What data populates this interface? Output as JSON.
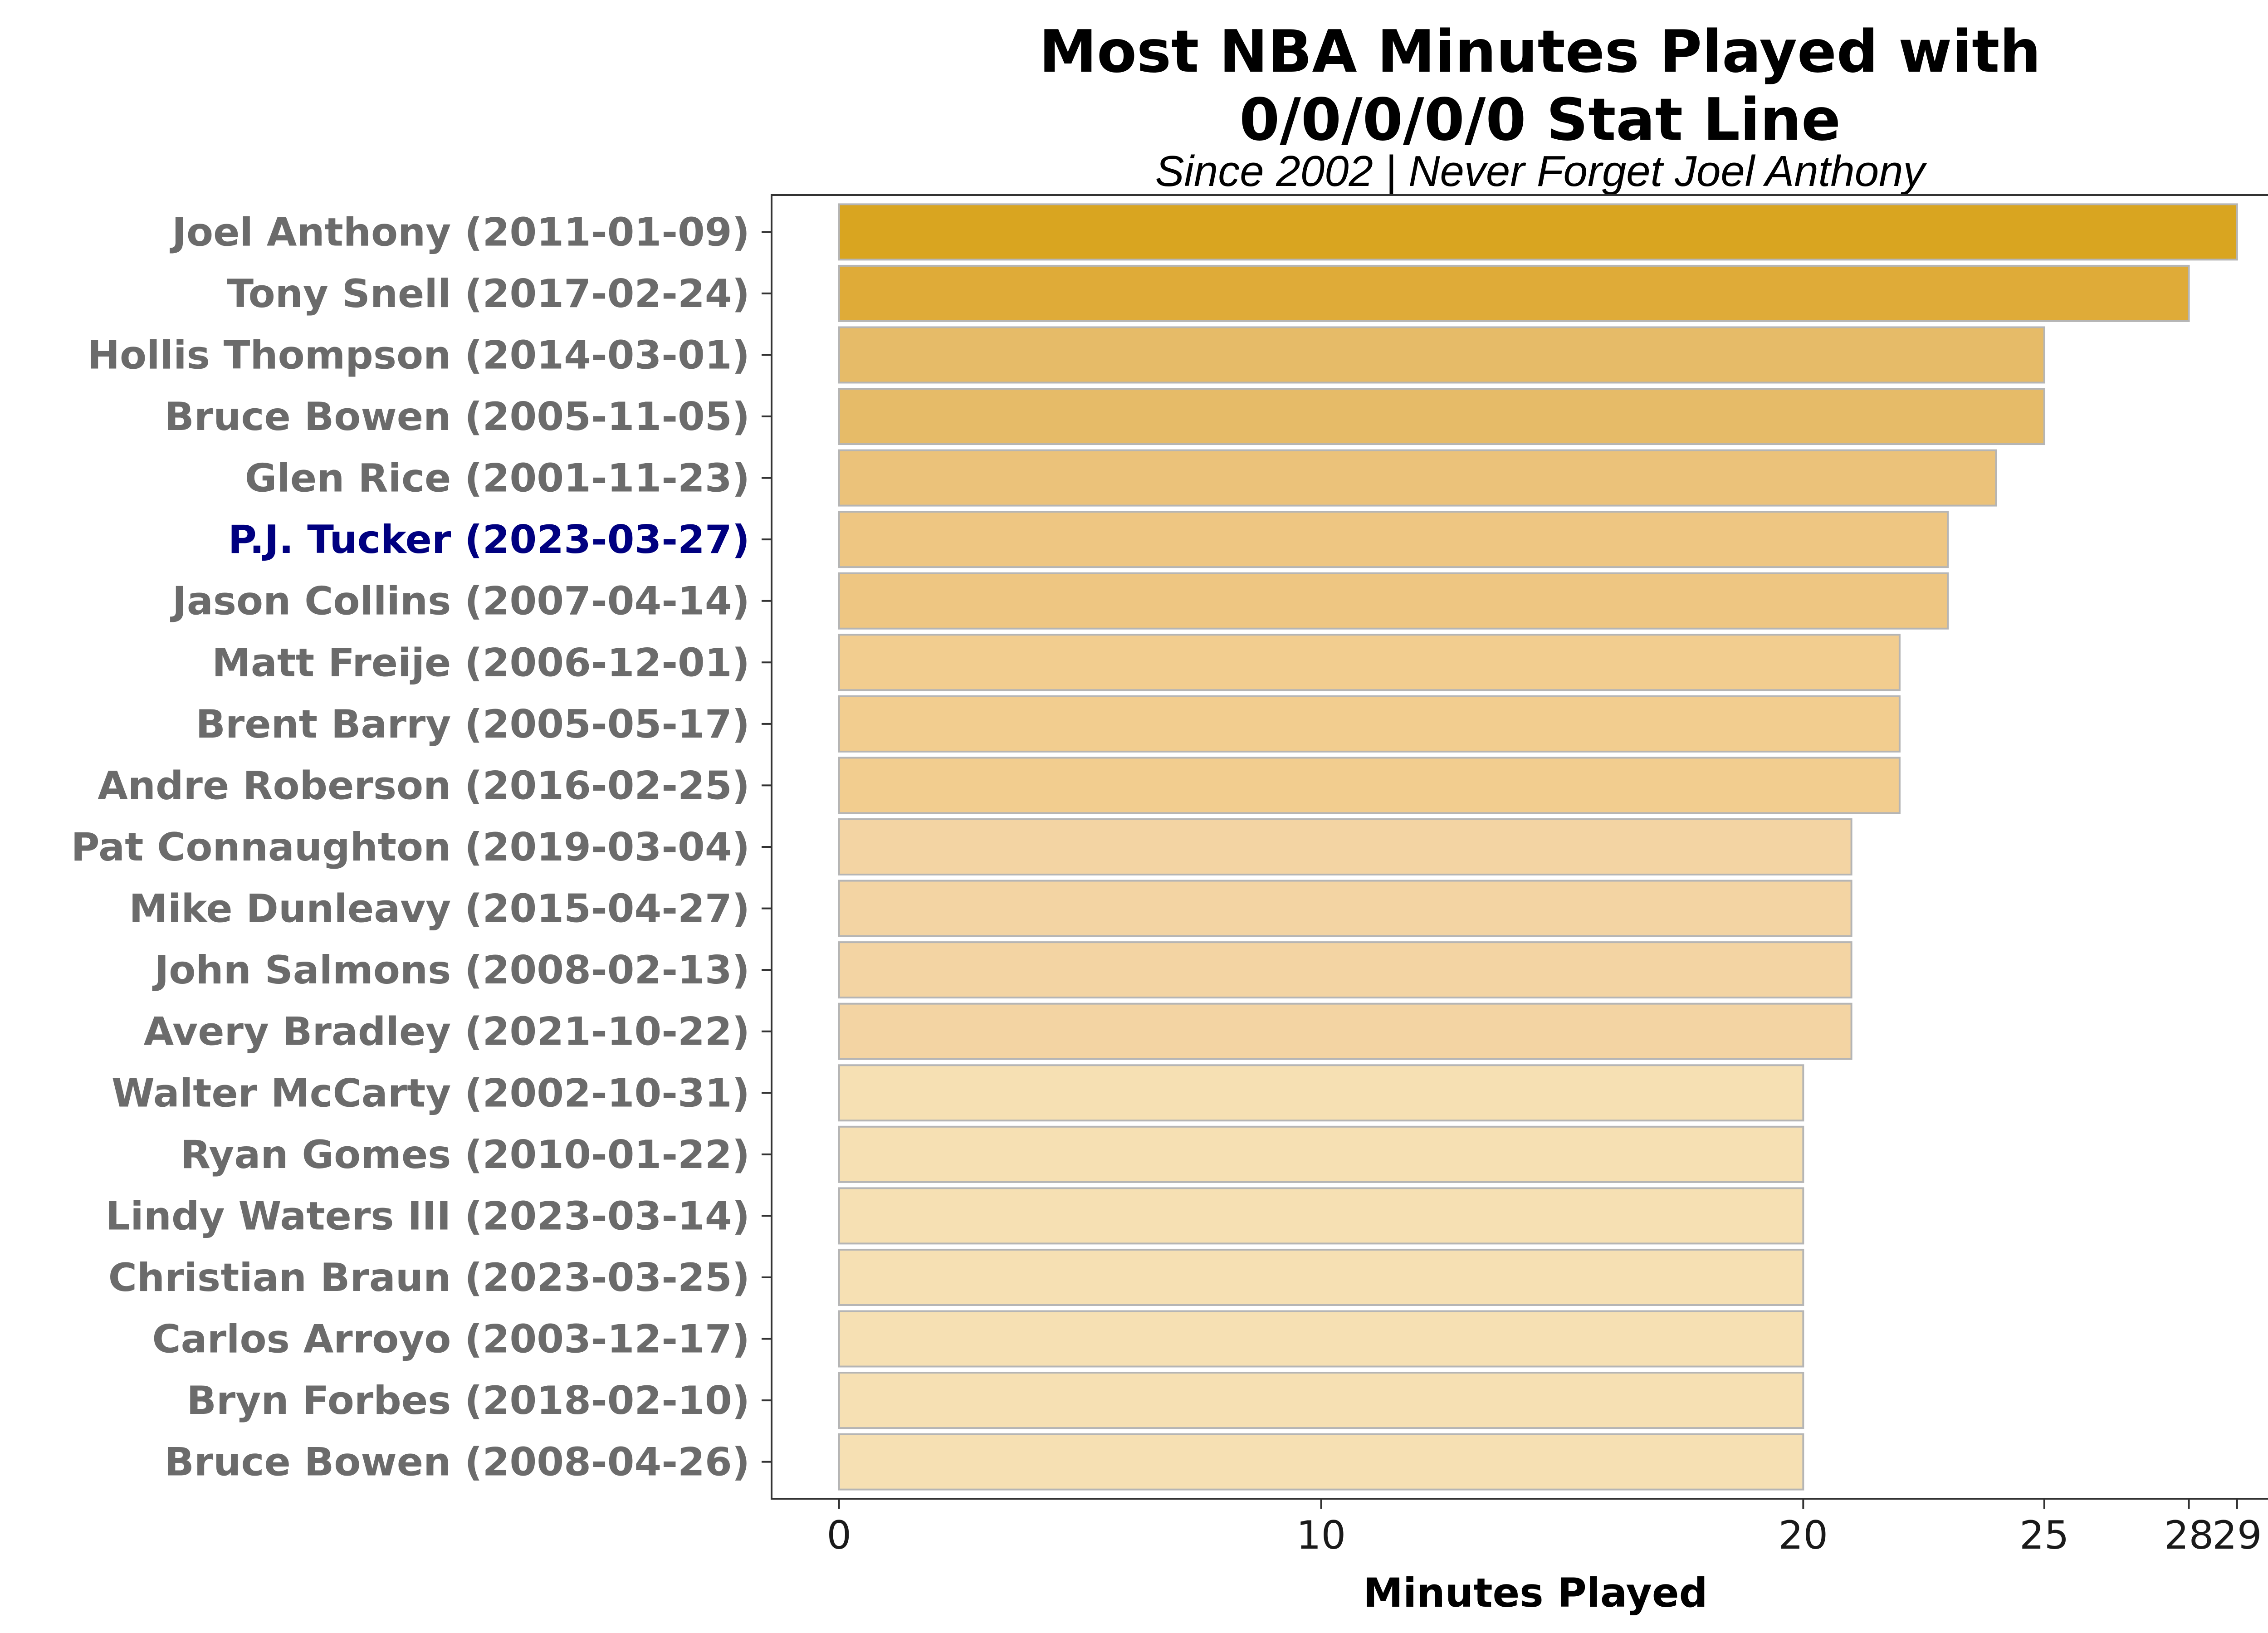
{
  "chart_data": {
    "type": "bar",
    "orientation": "horizontal",
    "title": "Most NBA Minutes Played with\n0/0/0/0/0 Stat Line",
    "subtitle": "Since 2002 | Never Forget Joel Anthony",
    "xlabel": "Minutes Played",
    "ylabel": "",
    "xlim": [
      -1.4,
      30.3
    ],
    "x_ticks": [
      0,
      10,
      20,
      25,
      28,
      29
    ],
    "grid": false,
    "legend": "none",
    "highlight_category": "P.J. Tucker (2023-03-27)",
    "highlight_color": "#000080",
    "categories": [
      "Joel Anthony (2011-01-09)",
      "Tony Snell (2017-02-24)",
      "Hollis Thompson (2014-03-01)",
      "Bruce Bowen (2005-11-05)",
      "Glen Rice (2001-11-23)",
      "P.J. Tucker (2023-03-27)",
      "Jason Collins (2007-04-14)",
      "Matt Freije (2006-12-01)",
      "Brent Barry (2005-05-17)",
      "Andre Roberson (2016-02-25)",
      "Pat Connaughton (2019-03-04)",
      "Mike Dunleavy (2015-04-27)",
      "John Salmons (2008-02-13)",
      "Avery Bradley (2021-10-22)",
      "Walter McCarty (2002-10-31)",
      "Ryan Gomes (2010-01-22)",
      "Lindy Waters III (2023-03-14)",
      "Christian Braun (2023-03-25)",
      "Carlos Arroyo (2003-12-17)",
      "Bryn Forbes (2018-02-10)",
      "Bruce Bowen (2008-04-26)"
    ],
    "values": [
      29,
      28,
      25,
      25,
      24,
      23,
      23,
      22,
      22,
      22,
      21,
      21,
      21,
      21,
      20,
      20,
      20,
      20,
      20,
      20,
      20
    ],
    "bar_colors": {
      "29": "#d9a520",
      "28": "#dfab38",
      "25": "#e6bb68",
      "24": "#ebc27a",
      "23": "#eec682",
      "22": "#f2cd8f",
      "21": "#f3d4a3",
      "20": "#f6e0b3"
    },
    "bar_stroke": "#b5b5b5"
  }
}
